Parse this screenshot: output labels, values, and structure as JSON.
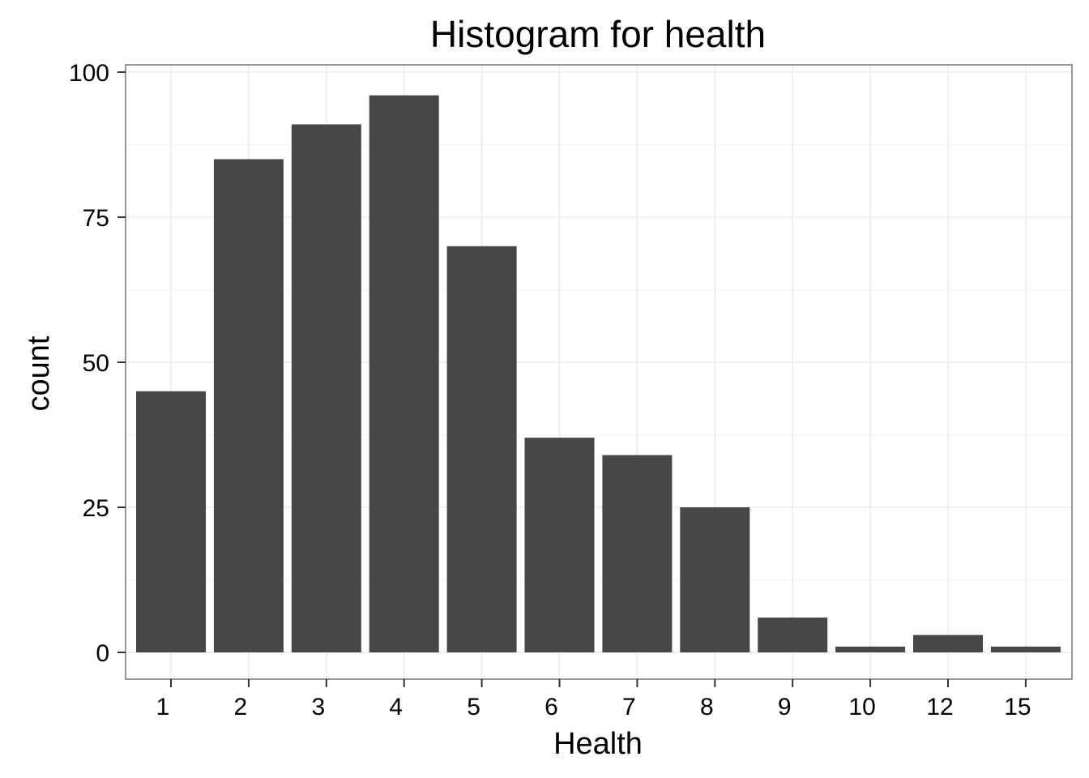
{
  "chart_data": {
    "type": "bar",
    "title": "Histogram for health",
    "xlabel": "Health",
    "ylabel": "count",
    "categories": [
      "1",
      "2",
      "3",
      "4",
      "5",
      "6",
      "7",
      "8",
      "9",
      "10",
      "12",
      "15"
    ],
    "values": [
      45,
      85,
      91,
      96,
      70,
      37,
      34,
      25,
      6,
      1,
      3,
      1
    ],
    "ylim": [
      0,
      100
    ],
    "yticks": [
      "0",
      "25",
      "50",
      "75",
      "100"
    ],
    "grid": true,
    "legend": "none",
    "colors": {
      "bar": "#474747",
      "grid": "#ebebeb",
      "panel_border": "#7f7f7f"
    }
  }
}
